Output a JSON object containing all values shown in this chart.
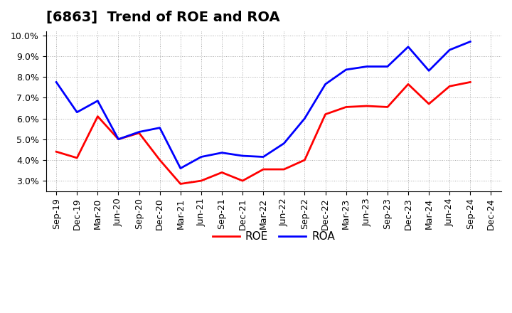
{
  "title": "[6863]  Trend of ROE and ROA",
  "labels": [
    "Sep-19",
    "Dec-19",
    "Mar-20",
    "Jun-20",
    "Sep-20",
    "Dec-20",
    "Mar-21",
    "Jun-21",
    "Sep-21",
    "Dec-21",
    "Mar-22",
    "Jun-22",
    "Sep-22",
    "Dec-22",
    "Mar-23",
    "Jun-23",
    "Sep-23",
    "Dec-23",
    "Mar-24",
    "Jun-24",
    "Sep-24",
    "Dec-24"
  ],
  "ROE": [
    4.4,
    4.1,
    6.1,
    5.0,
    5.3,
    4.0,
    2.85,
    3.0,
    3.4,
    3.0,
    3.55,
    3.55,
    4.0,
    6.2,
    6.55,
    6.6,
    6.55,
    7.65,
    6.7,
    7.55,
    7.75,
    null
  ],
  "ROA": [
    7.75,
    6.3,
    6.85,
    5.0,
    5.35,
    5.55,
    3.6,
    4.15,
    4.35,
    4.2,
    4.15,
    4.8,
    6.0,
    7.65,
    8.35,
    8.5,
    8.5,
    9.45,
    8.3,
    9.3,
    9.7,
    null
  ],
  "ROE_color": "#FF0000",
  "ROA_color": "#0000FF",
  "ylim": [
    2.5,
    10.2
  ],
  "yticks": [
    3.0,
    4.0,
    5.0,
    6.0,
    7.0,
    8.0,
    9.0,
    10.0
  ],
  "bg_color": "#FFFFFF",
  "grid_color": "#AAAAAA",
  "title_fontsize": 14,
  "legend_fontsize": 11,
  "axis_fontsize": 9
}
